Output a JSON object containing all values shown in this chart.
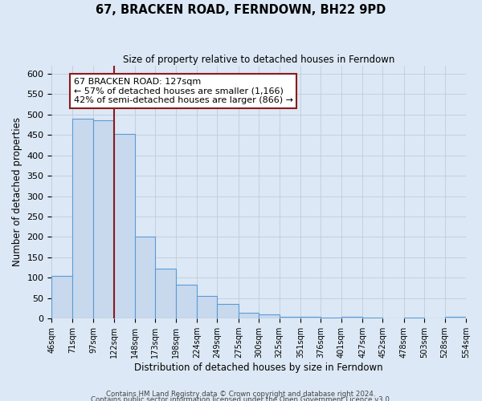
{
  "title": "67, BRACKEN ROAD, FERNDOWN, BH22 9PD",
  "subtitle": "Size of property relative to detached houses in Ferndown",
  "xlabel": "Distribution of detached houses by size in Ferndown",
  "ylabel": "Number of detached properties",
  "bar_edges": [
    46,
    71,
    97,
    122,
    148,
    173,
    198,
    224,
    249,
    275,
    300,
    325,
    351,
    376,
    401,
    427,
    452,
    478,
    503,
    528,
    554
  ],
  "bar_heights": [
    105,
    490,
    485,
    452,
    200,
    122,
    82,
    55,
    35,
    15,
    10,
    5,
    5,
    2,
    5,
    2,
    1,
    2,
    1,
    5
  ],
  "tick_labels": [
    "46sqm",
    "71sqm",
    "97sqm",
    "122sqm",
    "148sqm",
    "173sqm",
    "198sqm",
    "224sqm",
    "249sqm",
    "275sqm",
    "300sqm",
    "325sqm",
    "351sqm",
    "376sqm",
    "401sqm",
    "427sqm",
    "452sqm",
    "478sqm",
    "503sqm",
    "528sqm",
    "554sqm"
  ],
  "bar_color": "#c8d9ee",
  "bar_edgecolor": "#5b9bd5",
  "vline_x": 122,
  "vline_color": "#8b1a1a",
  "annotation_title": "67 BRACKEN ROAD: 127sqm",
  "annotation_line1": "← 57% of detached houses are smaller (1,166)",
  "annotation_line2": "42% of semi-detached houses are larger (866) →",
  "annotation_box_edgecolor": "#8b1a1a",
  "ylim": [
    0,
    620
  ],
  "yticks": [
    0,
    50,
    100,
    150,
    200,
    250,
    300,
    350,
    400,
    450,
    500,
    550,
    600
  ],
  "background_color": "#dce8f5",
  "plot_background": "#dce8f5",
  "grid_color": "#c0ccd8",
  "footer1": "Contains HM Land Registry data © Crown copyright and database right 2024.",
  "footer2": "Contains public sector information licensed under the Open Government Licence v3.0."
}
